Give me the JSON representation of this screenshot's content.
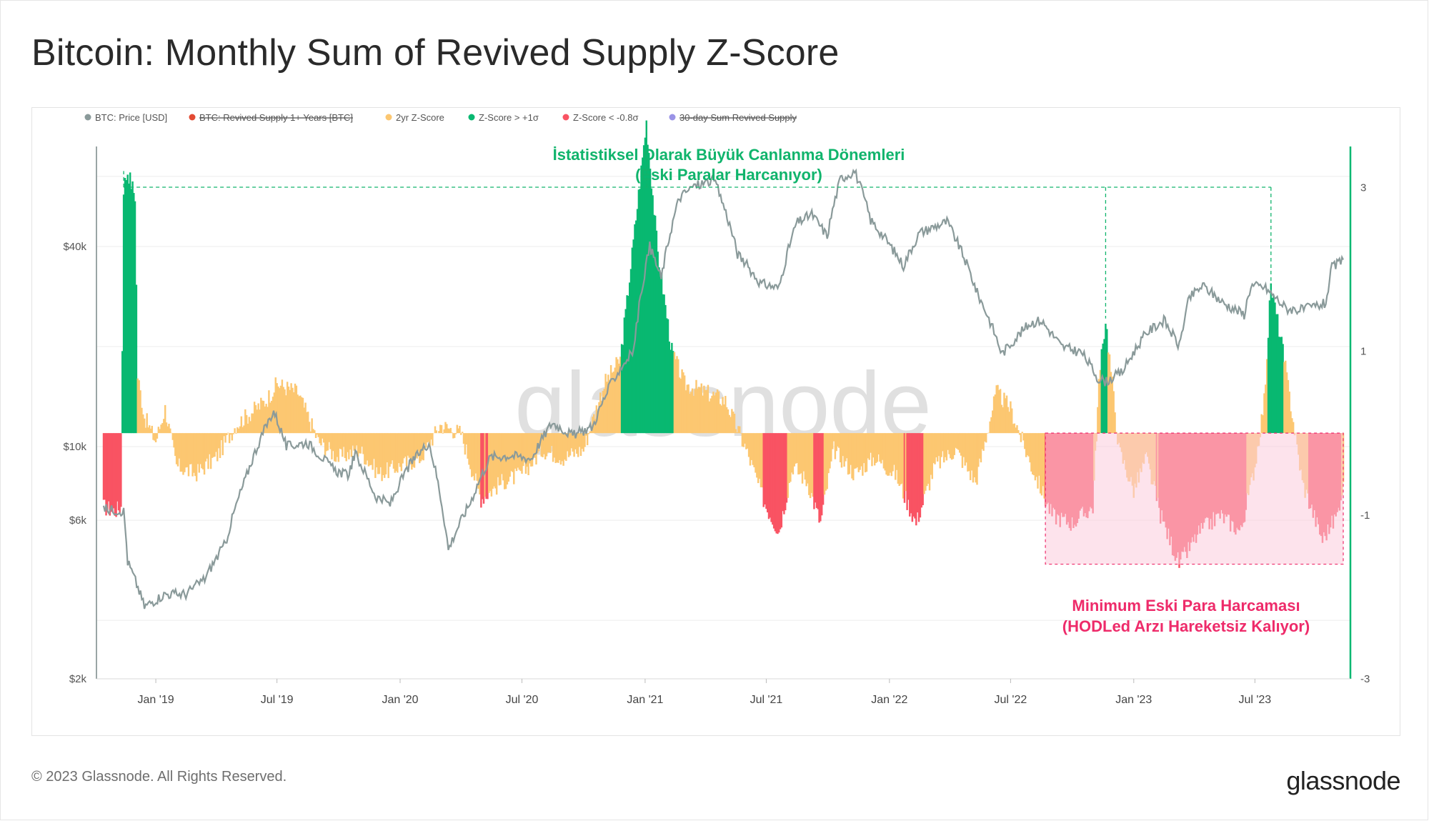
{
  "title": "Bitcoin: Monthly Sum of Revived Supply Z-Score",
  "footer": {
    "copyright": "© 2023 Glassnode. All Rights Reserved.",
    "logo": "glassnode"
  },
  "watermark": "glassnode",
  "colors": {
    "price": "#8a9a9a",
    "revived_supply": "#e34a33",
    "zscore": "#fcc771",
    "high": "#08b871",
    "low": "#f95363",
    "sum_30d": "#9a93e6",
    "ann_green": "#10b46c",
    "ann_pink": "#ee2b6a",
    "pink_fill": "#fcccdc"
  },
  "legend": [
    {
      "label": "BTC: Price [USD]",
      "color": "#8a9a9a",
      "strike": false
    },
    {
      "label": "BTC: Revived Supply 1+ Years [BTC]",
      "color": "#e34a33",
      "strike": true
    },
    {
      "label": "2yr Z-Score",
      "color": "#fcc771",
      "strike": false
    },
    {
      "label": "Z-Score > +1σ",
      "color": "#08b871",
      "strike": false
    },
    {
      "label": "Z-Score < -0.8σ",
      "color": "#f95363",
      "strike": false
    },
    {
      "label": "30-day Sum Revived Supply",
      "color": "#9a93e6",
      "strike": true
    }
  ],
  "annotations": {
    "top_line1": "İstatistiksel Olarak Büyük Canlanma Dönemleri",
    "top_line2": "(Eski Paralar Harcanıyor)",
    "bottom_line1": "Minimum Eski Para Harcaması",
    "bottom_line2": "(HODLed Arzı Hareketsiz Kalıyor)"
  },
  "chart_data": {
    "type": "line+area",
    "left_axis": {
      "scale": "log",
      "ticks": [
        {
          "label": "$2k",
          "value": 2000
        },
        {
          "label": "$6k",
          "value": 6000
        },
        {
          "label": "$10k",
          "value": 10000
        },
        {
          "label": "$40k",
          "value": 40000
        }
      ],
      "range": [
        2000,
        80000
      ]
    },
    "right_axis": {
      "ticks": [
        {
          "label": "3",
          "value": 3
        },
        {
          "label": "1",
          "value": 1
        },
        {
          "label": "-1",
          "value": -1
        },
        {
          "label": "-3",
          "value": -3
        }
      ],
      "range": [
        -3,
        3.5
      ]
    },
    "x_ticks": [
      {
        "label": "Jan '19",
        "date": "2019-01-01"
      },
      {
        "label": "Jul '19",
        "date": "2019-07-01"
      },
      {
        "label": "Jan '20",
        "date": "2020-01-01"
      },
      {
        "label": "Jul '20",
        "date": "2020-07-01"
      },
      {
        "label": "Jan '21",
        "date": "2021-01-01"
      },
      {
        "label": "Jul '21",
        "date": "2021-07-01"
      },
      {
        "label": "Jan '22",
        "date": "2022-01-01"
      },
      {
        "label": "Jul '22",
        "date": "2022-07-01"
      },
      {
        "label": "Jan '23",
        "date": "2023-01-01"
      },
      {
        "label": "Jul '23",
        "date": "2023-07-01"
      }
    ],
    "x_range": [
      "2018-10-15",
      "2023-11-10"
    ],
    "series": [
      {
        "name": "BTC: Price [USD]",
        "axis": "left",
        "points": [
          [
            "2018-10-15",
            6500
          ],
          [
            "2018-11-14",
            6400
          ],
          [
            "2018-11-20",
            4500
          ],
          [
            "2018-12-15",
            3300
          ],
          [
            "2019-01-15",
            3600
          ],
          [
            "2019-02-15",
            3600
          ],
          [
            "2019-03-15",
            4000
          ],
          [
            "2019-04-15",
            5100
          ],
          [
            "2019-05-15",
            8000
          ],
          [
            "2019-06-26",
            12800
          ],
          [
            "2019-07-15",
            10000
          ],
          [
            "2019-08-15",
            10300
          ],
          [
            "2019-09-24",
            8500
          ],
          [
            "2019-10-15",
            8200
          ],
          [
            "2019-10-26",
            9500
          ],
          [
            "2019-11-25",
            7100
          ],
          [
            "2019-12-17",
            6700
          ],
          [
            "2020-01-15",
            8800
          ],
          [
            "2020-02-13",
            10300
          ],
          [
            "2020-03-13",
            4900
          ],
          [
            "2020-04-15",
            6800
          ],
          [
            "2020-05-15",
            9300
          ],
          [
            "2020-06-15",
            9400
          ],
          [
            "2020-07-15",
            9200
          ],
          [
            "2020-08-15",
            11800
          ],
          [
            "2020-09-15",
            10800
          ],
          [
            "2020-10-15",
            11500
          ],
          [
            "2020-11-15",
            16000
          ],
          [
            "2020-12-15",
            19500
          ],
          [
            "2021-01-08",
            40000
          ],
          [
            "2021-01-25",
            32000
          ],
          [
            "2021-02-21",
            56000
          ],
          [
            "2021-03-13",
            60500
          ],
          [
            "2021-04-14",
            63500
          ],
          [
            "2021-05-19",
            38000
          ],
          [
            "2021-06-22",
            31000
          ],
          [
            "2021-07-20",
            30000
          ],
          [
            "2021-08-15",
            47000
          ],
          [
            "2021-09-07",
            50000
          ],
          [
            "2021-09-30",
            43000
          ],
          [
            "2021-10-20",
            64000
          ],
          [
            "2021-11-10",
            67500
          ],
          [
            "2021-12-04",
            48000
          ],
          [
            "2022-01-22",
            35000
          ],
          [
            "2022-02-15",
            44000
          ],
          [
            "2022-03-28",
            47500
          ],
          [
            "2022-05-12",
            29000
          ],
          [
            "2022-06-18",
            19000
          ],
          [
            "2022-07-30",
            23500
          ],
          [
            "2022-08-15",
            24000
          ],
          [
            "2022-09-15",
            20000
          ],
          [
            "2022-10-15",
            19200
          ],
          [
            "2022-11-09",
            16000
          ],
          [
            "2022-11-21",
            15700
          ],
          [
            "2022-12-15",
            16800
          ],
          [
            "2023-01-20",
            22000
          ],
          [
            "2023-02-15",
            24000
          ],
          [
            "2023-03-10",
            20000
          ],
          [
            "2023-03-25",
            28000
          ],
          [
            "2023-04-14",
            30500
          ],
          [
            "2023-05-15",
            27000
          ],
          [
            "2023-06-15",
            25000
          ],
          [
            "2023-06-25",
            30500
          ],
          [
            "2023-07-15",
            30200
          ],
          [
            "2023-08-17",
            26000
          ],
          [
            "2023-09-10",
            25800
          ],
          [
            "2023-10-15",
            27000
          ],
          [
            "2023-10-24",
            34500
          ],
          [
            "2023-11-10",
            36500
          ]
        ]
      },
      {
        "name": "2yr Z-Score",
        "axis": "right",
        "points": [
          [
            "2018-10-15",
            -0.9
          ],
          [
            "2018-11-01",
            -0.95
          ],
          [
            "2018-11-10",
            -0.9
          ],
          [
            "2018-11-14",
            3.0
          ],
          [
            "2018-11-20",
            3.2
          ],
          [
            "2018-12-01",
            2.9
          ],
          [
            "2018-12-05",
            0.7
          ],
          [
            "2018-12-15",
            0.2
          ],
          [
            "2019-01-01",
            -0.1
          ],
          [
            "2019-01-15",
            0.3
          ],
          [
            "2019-02-01",
            -0.4
          ],
          [
            "2019-03-01",
            -0.5
          ],
          [
            "2019-04-01",
            -0.3
          ],
          [
            "2019-05-01",
            0.1
          ],
          [
            "2019-06-15",
            0.4
          ],
          [
            "2019-07-01",
            0.6
          ],
          [
            "2019-08-01",
            0.5
          ],
          [
            "2019-09-01",
            -0.1
          ],
          [
            "2019-10-01",
            -0.3
          ],
          [
            "2019-11-01",
            -0.2
          ],
          [
            "2019-12-01",
            -0.5
          ],
          [
            "2020-01-01",
            -0.4
          ],
          [
            "2020-02-01",
            -0.3
          ],
          [
            "2020-03-01",
            0.1
          ],
          [
            "2020-04-01",
            0.0
          ],
          [
            "2020-05-01",
            -0.8
          ],
          [
            "2020-06-01",
            -0.6
          ],
          [
            "2020-07-01",
            -0.5
          ],
          [
            "2020-08-01",
            -0.2
          ],
          [
            "2020-09-01",
            -0.3
          ],
          [
            "2020-10-01",
            -0.2
          ],
          [
            "2020-11-01",
            0.6
          ],
          [
            "2020-11-25",
            0.9
          ],
          [
            "2020-12-05",
            1.6
          ],
          [
            "2021-01-03",
            3.8
          ],
          [
            "2021-01-20",
            2.2
          ],
          [
            "2021-02-10",
            1.0
          ],
          [
            "2021-03-01",
            0.6
          ],
          [
            "2021-04-01",
            0.5
          ],
          [
            "2021-05-01",
            0.4
          ],
          [
            "2021-06-01",
            -0.2
          ],
          [
            "2021-07-01",
            -0.9
          ],
          [
            "2021-07-20",
            -1.2
          ],
          [
            "2021-08-10",
            -0.4
          ],
          [
            "2021-09-01",
            -0.6
          ],
          [
            "2021-09-20",
            -1.1
          ],
          [
            "2021-10-10",
            -0.2
          ],
          [
            "2021-11-10",
            -0.5
          ],
          [
            "2021-12-10",
            -0.3
          ],
          [
            "2022-01-10",
            -0.5
          ],
          [
            "2022-02-10",
            -1.1
          ],
          [
            "2022-03-10",
            -0.4
          ],
          [
            "2022-04-10",
            -0.2
          ],
          [
            "2022-05-10",
            -0.6
          ],
          [
            "2022-06-10",
            0.5
          ],
          [
            "2022-07-01",
            0.3
          ],
          [
            "2022-08-01",
            -0.4
          ],
          [
            "2022-09-01",
            -1.0
          ],
          [
            "2022-10-01",
            -1.1
          ],
          [
            "2022-11-01",
            -0.9
          ],
          [
            "2022-11-10",
            0.6
          ],
          [
            "2022-11-20",
            1.4
          ],
          [
            "2022-12-10",
            -0.2
          ],
          [
            "2023-01-01",
            -0.7
          ],
          [
            "2023-01-20",
            -0.3
          ],
          [
            "2023-02-10",
            -1.0
          ],
          [
            "2023-03-10",
            -1.6
          ],
          [
            "2023-04-10",
            -1.2
          ],
          [
            "2023-05-10",
            -1.0
          ],
          [
            "2023-06-10",
            -1.2
          ],
          [
            "2023-07-01",
            -0.4
          ],
          [
            "2023-07-15",
            0.4
          ],
          [
            "2023-07-25",
            1.8
          ],
          [
            "2023-08-10",
            1.1
          ],
          [
            "2023-09-10",
            -0.6
          ],
          [
            "2023-10-10",
            -1.3
          ],
          [
            "2023-11-01",
            -1.0
          ],
          [
            "2023-11-10",
            -0.6
          ]
        ]
      }
    ]
  }
}
